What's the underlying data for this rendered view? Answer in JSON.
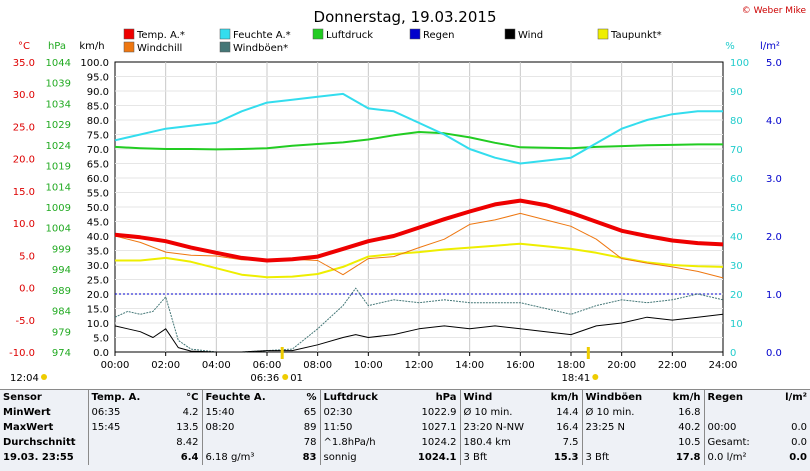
{
  "title": "Donnerstag, 19.03.2015",
  "copyright": "© Weber Mike",
  "legend": [
    {
      "label": "Temp. A.*",
      "color": "#ee0000"
    },
    {
      "label": "Feuchte A.*",
      "color": "#33ddee"
    },
    {
      "label": "Luftdruck",
      "color": "#22cc22"
    },
    {
      "label": "Regen",
      "color": "#0000cc"
    },
    {
      "label": "Wind",
      "color": "#000000"
    },
    {
      "label": "Taupunkt*",
      "color": "#eeee00"
    },
    {
      "label": "Windchill",
      "color": "#ee7711"
    },
    {
      "label": "Windböen*",
      "color": "#447777"
    }
  ],
  "axis_units": {
    "temp": "°C",
    "hpa": "hPa",
    "kmh": "km/h",
    "pct": "%",
    "rain": "l/m²"
  },
  "sunrise_label": "06:36",
  "sunrise_marker": "01",
  "sunset_label": "18:41",
  "moon_label": "12:04",
  "chart_data": {
    "type": "line",
    "x_unit": "hours",
    "xlim": [
      0,
      24
    ],
    "x_ticks": [
      "00:00",
      "02:00",
      "04:00",
      "06:00",
      "08:00",
      "10:00",
      "12:00",
      "14:00",
      "16:00",
      "18:00",
      "20:00",
      "22:00",
      "24:00"
    ],
    "axes": {
      "temp": {
        "range": [
          -10,
          35
        ],
        "ticks": [
          "-10.0",
          "-5.0",
          "0.0",
          "5.0",
          "10.0",
          "15.0",
          "20.0",
          "25.0",
          "30.0",
          "35.0"
        ]
      },
      "hpa": {
        "range": [
          974,
          1044
        ],
        "ticks": [
          "974",
          "979",
          "984",
          "989",
          "994",
          "999",
          "1004",
          "1009",
          "1014",
          "1019",
          "1024",
          "1029",
          "1034",
          "1039",
          "1044"
        ]
      },
      "kmh": {
        "range": [
          0,
          100
        ],
        "ticks": [
          "0.0",
          "5.0",
          "10.0",
          "15.0",
          "20.0",
          "25.0",
          "30.0",
          "35.0",
          "40.0",
          "45.0",
          "50.0",
          "55.0",
          "60.0",
          "65.0",
          "70.0",
          "75.0",
          "80.0",
          "85.0",
          "90.0",
          "95.0",
          "100.0"
        ]
      },
      "pct": {
        "range": [
          0,
          100
        ],
        "ticks": [
          "0",
          "10",
          "20",
          "30",
          "40",
          "50",
          "60",
          "70",
          "80",
          "90",
          "100"
        ]
      },
      "rain": {
        "range": [
          0,
          5
        ],
        "ticks": [
          "0.0",
          "1.0",
          "2.0",
          "3.0",
          "4.0",
          "5.0"
        ]
      }
    },
    "series": [
      {
        "name": "Temp. A.*",
        "axis": "temp",
        "color": "#ee0000",
        "width": 4,
        "x": [
          0,
          1,
          2,
          3,
          4,
          5,
          6,
          7,
          8,
          9,
          10,
          11,
          12,
          13,
          14,
          15,
          16,
          17,
          18,
          19,
          20,
          21,
          22,
          23,
          24
        ],
        "y": [
          8.2,
          7.8,
          7.2,
          6.2,
          5.4,
          4.6,
          4.2,
          4.4,
          4.8,
          6.0,
          7.2,
          8.0,
          9.3,
          10.6,
          11.8,
          12.9,
          13.5,
          12.8,
          11.6,
          10.2,
          8.8,
          8.0,
          7.3,
          6.9,
          6.7
        ]
      },
      {
        "name": "Windchill",
        "axis": "temp",
        "color": "#ee7711",
        "width": 1,
        "x": [
          0,
          1,
          2,
          3,
          4,
          5,
          6,
          7,
          8,
          9,
          10,
          11,
          12,
          13,
          14,
          15,
          16,
          17,
          18,
          19,
          20,
          21,
          22,
          23,
          24
        ],
        "y": [
          8.0,
          7.0,
          5.5,
          5.0,
          4.9,
          4.3,
          4.2,
          4.4,
          4.2,
          2.0,
          4.5,
          4.8,
          6.2,
          7.5,
          9.8,
          10.5,
          11.5,
          10.5,
          9.5,
          7.5,
          4.5,
          3.8,
          3.2,
          2.5,
          1.5
        ]
      },
      {
        "name": "Taupunkt*",
        "axis": "temp",
        "color": "#eeee00",
        "width": 2,
        "x": [
          0,
          1,
          2,
          3,
          4,
          5,
          6,
          7,
          8,
          9,
          10,
          11,
          12,
          13,
          14,
          15,
          16,
          17,
          18,
          19,
          20,
          21,
          22,
          23,
          24
        ],
        "y": [
          4.2,
          4.2,
          4.6,
          4.0,
          3.0,
          2.0,
          1.6,
          1.7,
          2.1,
          3.2,
          4.8,
          5.2,
          5.5,
          5.9,
          6.2,
          6.5,
          6.8,
          6.4,
          6.0,
          5.4,
          4.6,
          3.9,
          3.5,
          3.3,
          3.2
        ]
      },
      {
        "name": "Feuchte A.*",
        "axis": "pct",
        "color": "#33ddee",
        "width": 2,
        "x": [
          0,
          1,
          2,
          3,
          4,
          5,
          6,
          7,
          8,
          9,
          10,
          11,
          12,
          13,
          14,
          15,
          16,
          17,
          18,
          19,
          20,
          21,
          22,
          23,
          24
        ],
        "y": [
          73,
          75,
          77,
          78,
          79,
          83,
          86,
          87,
          88,
          89,
          84,
          83,
          79,
          75,
          70,
          67,
          65,
          66,
          67,
          72,
          77,
          80,
          82,
          83,
          83
        ]
      },
      {
        "name": "Luftdruck",
        "axis": "hpa",
        "color": "#22cc22",
        "width": 2,
        "x": [
          0,
          1,
          2,
          3,
          4,
          5,
          6,
          7,
          8,
          9,
          10,
          11,
          12,
          13,
          14,
          15,
          16,
          17,
          18,
          19,
          20,
          21,
          22,
          23,
          24
        ],
        "y": [
          1023.5,
          1023.2,
          1023.0,
          1023.0,
          1022.9,
          1023.0,
          1023.2,
          1023.8,
          1024.2,
          1024.6,
          1025.3,
          1026.3,
          1027.1,
          1026.8,
          1025.8,
          1024.5,
          1023.4,
          1023.3,
          1023.2,
          1023.5,
          1023.7,
          1023.9,
          1024.0,
          1024.1,
          1024.1
        ]
      },
      {
        "name": "Wind",
        "axis": "kmh",
        "color": "#000000",
        "width": 1,
        "x": [
          0,
          0.5,
          1,
          1.5,
          2,
          2.5,
          3,
          4,
          5,
          6,
          7,
          8,
          9,
          9.5,
          10,
          11,
          12,
          13,
          14,
          15,
          16,
          17,
          18,
          19,
          20,
          21,
          22,
          23,
          24
        ],
        "y": [
          9,
          8,
          7,
          5,
          8,
          1.5,
          0.3,
          0,
          0,
          0.5,
          0.5,
          2.5,
          5,
          6,
          5,
          6,
          8,
          9,
          8,
          9,
          8,
          7,
          6,
          9,
          10,
          12,
          11,
          12,
          13
        ]
      },
      {
        "name": "Windböen*",
        "axis": "kmh",
        "color": "#447777",
        "width": 1,
        "x": [
          0,
          0.5,
          1,
          1.5,
          2,
          2.5,
          3,
          4,
          5,
          6,
          7,
          8,
          9,
          9.5,
          10,
          11,
          12,
          13,
          14,
          15,
          16,
          17,
          18,
          19,
          20,
          21,
          22,
          23,
          24
        ],
        "y": [
          12,
          14,
          13,
          14,
          19,
          4,
          1,
          0,
          0,
          0.5,
          1,
          8,
          16,
          22,
          16,
          18,
          17,
          18,
          17,
          17,
          17,
          15,
          13,
          16,
          18,
          17,
          18,
          20,
          18
        ]
      }
    ],
    "regen_level_l_m2": 1.0
  },
  "table": {
    "headers": [
      "Sensor",
      "Temp. A.",
      "°C",
      "Feuchte A.",
      "%",
      "Luftdruck",
      "hPa",
      "Wind",
      "km/h",
      "Windböen",
      "km/h",
      "Regen",
      "l/m²"
    ],
    "rows": [
      [
        "MinWert",
        "06:35",
        "4.2",
        "15:40",
        "65",
        "02:30",
        "1022.9",
        "Ø 10 min.",
        "14.4",
        "Ø 10 min.",
        "16.8",
        "",
        ""
      ],
      [
        "MaxWert",
        "15:45",
        "13.5",
        "08:20",
        "89",
        "11:50",
        "1027.1",
        "23:20    N-NW",
        "16.4",
        "23:25    N",
        "40.2",
        "00:00",
        "0.0"
      ],
      [
        "Durchschnitt",
        "",
        "8.42",
        "",
        "78",
        "^1.8hPa/h",
        "1024.2",
        "180.4 km",
        "7.5",
        "",
        "10.5",
        "Gesamt:",
        "0.0"
      ],
      [
        "19.03. 23:55",
        "",
        "6.4",
        "6.18 g/m³",
        "83",
        "sonnig",
        "1024.1",
        "3 Bft",
        "15.3",
        "3 Bft",
        "17.8",
        "0.0 l/m²",
        "0.0"
      ]
    ]
  }
}
